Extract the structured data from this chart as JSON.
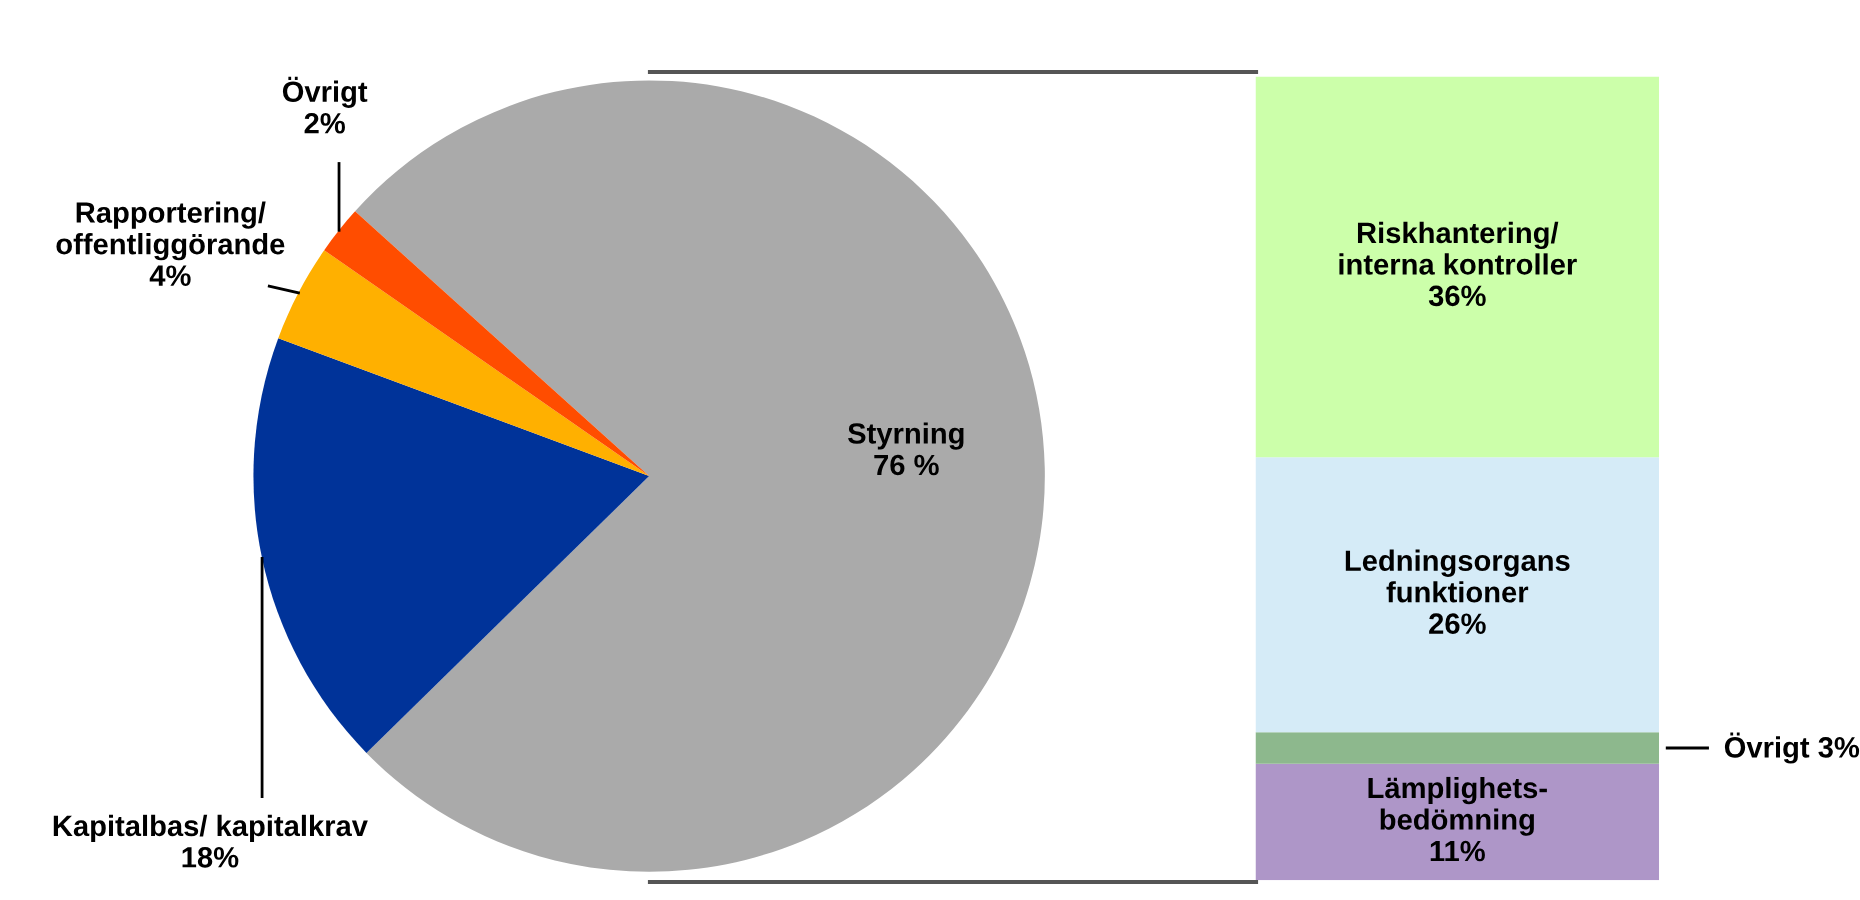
{
  "chart_data": [
    {
      "type": "pie",
      "categories": [
        "Styrning",
        "Kapitalbas/ kapitalkrav",
        "Rapportering/\noffentliggörande",
        "Övrigt"
      ],
      "values": [
        76,
        18,
        4,
        2
      ],
      "value_labels": [
        "76 %",
        "18%",
        "4%",
        "2%"
      ],
      "colors": [
        "#aaaaaa",
        "#003399",
        "#ffb000",
        "#ff4d00"
      ]
    },
    {
      "type": "bar",
      "stacked": true,
      "categories": [
        null
      ],
      "series": [
        {
          "name": "Lämplighets-\nbedömning",
          "color": "#ae96c8",
          "values": [
            11
          ],
          "value_labels": [
            "11%"
          ]
        },
        {
          "name": "Övrigt",
          "color": "#8db88d",
          "values": [
            3
          ],
          "value_labels": [
            "3%"
          ]
        },
        {
          "name": "Ledningsorgans\nfunktioner",
          "color": "#d5ebf7",
          "values": [
            26
          ],
          "value_labels": [
            "26%"
          ]
        },
        {
          "name": "Riskhantering/\ninterna kontroller",
          "color": "#ccffaa",
          "values": [
            36
          ],
          "value_labels": [
            "36%"
          ]
        }
      ]
    }
  ]
}
